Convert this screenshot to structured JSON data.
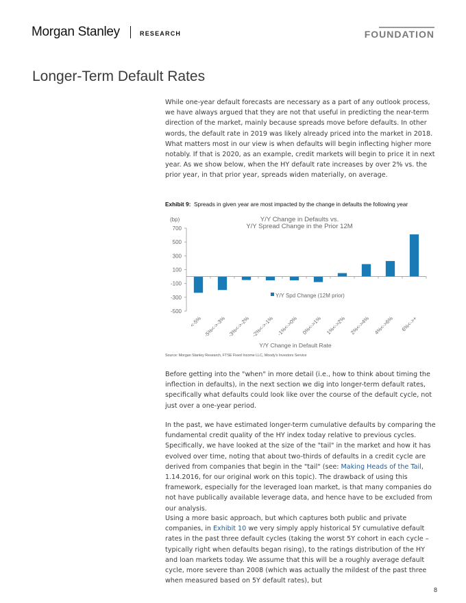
{
  "header": {
    "logo": "Morgan Stanley",
    "section": "RESEARCH",
    "series": "FOUNDATION"
  },
  "page_title": "Longer-Term Default Rates",
  "paragraphs": {
    "p1": "While one-year default forecasts are necessary as a part of any outlook process, we have always argued that they are not that useful in predicting the near-term direction of the market, mainly because spreads move before defaults. In other words, the default rate in 2019 was likely already priced into the market in 2018. What matters most in our view is when defaults will begin inflecting higher more notably. If that is 2020, as an example, credit markets will begin to price it in next year. As we show below, when the HY default rate increases by over 2% vs. the prior year, in that prior year, spreads widen materially, on average.",
    "p2": "Before getting into the \"when\" in more detail (i.e., how to think about timing the inflection in defaults), in the next section we dig into longer-term default rates, specifically what defaults could look like over the course of the default cycle, not just over a one-year period.",
    "p3_a": "In the past, we have estimated longer-term cumulative defaults by comparing the fundamental credit quality of the HY index today relative to previous cycles. Specifically, we have looked at the size of the \"tail\" in the market and how it has evolved over time, noting that about two-thirds of defaults in a credit cycle are derived from companies that begin in the \"tail\" (see: ",
    "p3_link": "Making Heads of the Tail",
    "p3_b": ", 1.14.2016, for our original work on this topic). The drawback of using this framework, especially for the leveraged loan market, is that many companies do not have publically available leverage data, and hence have to be excluded from our analysis.",
    "p4_a": "Using a more basic approach, but which captures both public and private companies, in ",
    "p4_link": "Exhibit 10",
    "p4_b": " we very simply apply historical 5Y cumulative default rates in the past three default cycles (taking the worst 5Y cohort in each cycle – typically right when defaults began rising), to the ratings distribution of the HY and loan markets today. We assume that this will be a roughly average default cycle, more severe than 2008 (which was actually the mildest of the past three when measured based on 5Y default rates), but"
  },
  "exhibit": {
    "label": "Exhibit 9:",
    "caption": "Spreads in given year are most impacted by the change in defaults the following year"
  },
  "chart_data": {
    "type": "bar",
    "title_line1": "Y/Y Change in Defaults vs.",
    "title_line2": "Y/Y Spread Change in the Prior 12M",
    "ylabel": "(bp)",
    "xlabel": "Y/Y Change in Default Rate",
    "categories": [
      "<-5%",
      "-5%<->-3%",
      "-3%<->-2%",
      "-2%<->-1%",
      "-1%<->0%",
      "0%<->1%",
      "1%<->2%",
      "2%<->4%",
      "4%<->6%",
      "6%<->+"
    ],
    "series": [
      {
        "name": "Y/Y Spd Change (12M prior)",
        "values": [
          -235,
          -195,
          -50,
          -55,
          -55,
          -80,
          50,
          180,
          225,
          610
        ]
      }
    ],
    "ylim": [
      -500,
      700
    ],
    "yticks": [
      700,
      500,
      300,
      100,
      -100,
      -300,
      -500
    ],
    "grid": false,
    "legend_position": "center-bottom",
    "bar_color": "#1a7ab5"
  },
  "source": "Source: Morgan Stanley Research, FTSE Fixed Income LLC, Moody's Investors Service",
  "page_number": "8"
}
